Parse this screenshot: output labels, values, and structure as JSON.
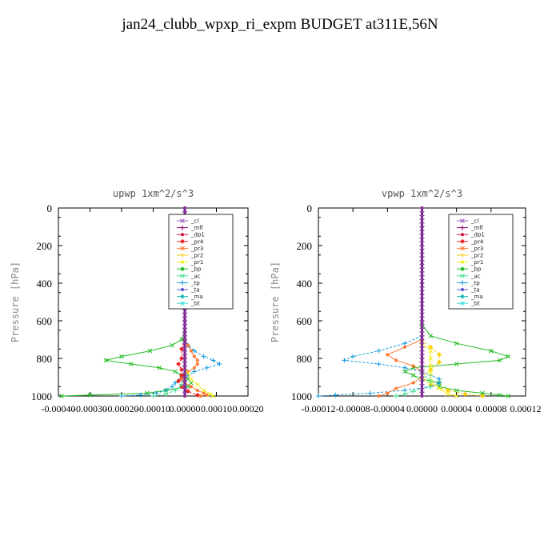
{
  "title": "jan24_clubb_wpxp_ri_expm  BUDGET at311E,56N",
  "legend_labels": [
    "_cl",
    "_mfl",
    "_dp1",
    "_pr4",
    "_pr3",
    "_pr2",
    "_pr1",
    "_bp",
    "_ac",
    "_tp",
    "_ta",
    "_ma",
    "_bt"
  ],
  "series_colors": [
    "#9b59b6",
    "#800060",
    "#cc1040",
    "#ee2222",
    "#ff7733",
    "#ffcc00",
    "#eeee22",
    "#22bb22",
    "#33dd88",
    "#1199dd",
    "#5555cc",
    "#22bbbb",
    "#33dddd"
  ],
  "chart_data": [
    {
      "type": "line",
      "title": "upwp   1xm^2/s^3",
      "ylabel": "Pressure [hPa]",
      "ylim": [
        1000,
        0
      ],
      "yticks": [
        "0",
        "200",
        "400",
        "600",
        "800",
        "1000"
      ],
      "xlim": [
        -0.0004,
        0.0002
      ],
      "xticks": [
        "-0.00040",
        "-0.00030",
        "-0.00020",
        "-0.00010",
        "0.00000",
        "0.00010",
        "0.00020"
      ],
      "grid": false,
      "legend_position": "top-right",
      "series": [
        {
          "name": "_bp",
          "pressure": [
            650,
            700,
            730,
            760,
            790,
            810,
            830,
            850,
            870,
            890,
            910,
            930,
            950,
            970,
            985,
            995,
            1000
          ],
          "values": [
            0,
            -1e-05,
            -4e-05,
            -0.00011,
            -0.0002,
            -0.00025,
            -0.00017,
            -8e-05,
            -3e-05,
            -1e-05,
            1e-05,
            2e-05,
            1e-05,
            -6e-05,
            -0.00012,
            -0.0003,
            -0.00039
          ]
        },
        {
          "name": "_tp",
          "pressure": [
            700,
            730,
            760,
            790,
            810,
            830,
            850,
            870,
            890,
            910,
            930,
            950,
            970,
            985,
            995,
            1000
          ],
          "values": [
            0,
            1e-05,
            3e-05,
            6e-05,
            9e-05,
            0.00011,
            7e-05,
            3e-05,
            1e-05,
            -1e-05,
            -3e-05,
            -4e-05,
            -6e-05,
            -9e-05,
            -0.00014,
            -0.0002
          ]
        },
        {
          "name": "_pr3",
          "pressure": [
            700,
            730,
            760,
            790,
            810,
            830,
            850,
            870,
            890,
            910,
            930,
            950,
            970,
            985,
            995,
            1000
          ],
          "values": [
            0,
            1e-05,
            2e-05,
            3e-05,
            4e-05,
            4e-05,
            3e-05,
            1e-05,
            0,
            -1e-05,
            0,
            2e-05,
            4e-05,
            6e-05,
            7e-05,
            5e-05
          ]
        },
        {
          "name": "_pr4",
          "pressure": [
            700,
            750,
            800,
            830,
            860,
            890,
            920,
            950,
            975,
            995
          ],
          "values": [
            0,
            -1e-05,
            -1e-05,
            -2e-05,
            -1e-05,
            -1e-05,
            -2e-05,
            -1e-05,
            1e-05,
            4e-05
          ]
        },
        {
          "name": "_pr1",
          "pressure": [
            850,
            880,
            910,
            940,
            970,
            990,
            1000
          ],
          "values": [
            0,
            1e-05,
            2e-05,
            4e-05,
            6e-05,
            8e-05,
            9e-05
          ]
        },
        {
          "name": "_ac",
          "pressure": [
            900,
            940,
            970,
            990,
            1000
          ],
          "values": [
            0,
            -1e-05,
            -3e-05,
            -6e-05,
            -0.0001
          ]
        },
        {
          "name": "_mfl",
          "pressure": [
            0,
            100,
            200,
            300,
            400,
            500,
            600,
            700,
            800,
            900,
            1000
          ],
          "values": [
            0,
            0,
            0,
            0,
            0,
            0,
            0,
            0,
            0,
            0,
            0
          ]
        }
      ]
    },
    {
      "type": "line",
      "title": "vpwp   1xm^2/s^3",
      "ylabel": "Pressure [hPa]",
      "ylim": [
        1000,
        0
      ],
      "yticks": [
        "0",
        "200",
        "400",
        "600",
        "800",
        "1000"
      ],
      "xlim": [
        -0.00012,
        0.00012
      ],
      "xticks": [
        "-0.00012",
        "-0.00008",
        "-0.00004",
        "0.00000",
        "0.00004",
        "0.00008",
        "0.00012"
      ],
      "grid": false,
      "legend_position": "top-right",
      "series": [
        {
          "name": "_bp",
          "pressure": [
            620,
            680,
            720,
            760,
            790,
            810,
            830,
            850,
            870,
            890,
            910,
            930,
            950,
            970,
            985,
            995,
            1000
          ],
          "values": [
            0,
            1e-05,
            4e-05,
            8e-05,
            0.0001,
            9e-05,
            4e-05,
            -1e-05,
            -2e-05,
            -1e-05,
            0,
            2e-05,
            2e-05,
            4e-05,
            7e-05,
            9e-05,
            0.0001
          ]
        },
        {
          "name": "_tp",
          "pressure": [
            680,
            720,
            760,
            790,
            810,
            830,
            850,
            870,
            890,
            910,
            930,
            950,
            970,
            985,
            995,
            1000
          ],
          "values": [
            0,
            -2e-05,
            -5e-05,
            -8e-05,
            -9e-05,
            -5e-05,
            -2e-05,
            0,
            1e-05,
            2e-05,
            2e-05,
            1e-05,
            -2e-05,
            -6e-05,
            -0.0001,
            -0.00012
          ]
        },
        {
          "name": "_pr3",
          "pressure": [
            700,
            740,
            780,
            810,
            840,
            870,
            900,
            930,
            960,
            985,
            1000
          ],
          "values": [
            0,
            -2e-05,
            -4e-05,
            -3e-05,
            -1e-05,
            0,
            0,
            -1e-05,
            -3e-05,
            -4e-05,
            -5e-05
          ]
        },
        {
          "name": "_pr2",
          "pressure": [
            700,
            740,
            780,
            820,
            860,
            900,
            940,
            970,
            990,
            1000
          ],
          "values": [
            0,
            1e-05,
            2e-05,
            2e-05,
            1e-05,
            0,
            1e-05,
            3e-05,
            5e-05,
            7e-05
          ]
        },
        {
          "name": "_pr1",
          "pressure": [
            720,
            760,
            800,
            840,
            880,
            920,
            960,
            990,
            1000
          ],
          "values": [
            0,
            1e-05,
            1e-05,
            1e-05,
            1e-05,
            1e-05,
            2e-05,
            3e-05,
            4e-05
          ]
        },
        {
          "name": "_ac",
          "pressure": [
            880,
            920,
            950,
            975,
            990,
            1000
          ],
          "values": [
            0,
            1e-05,
            1e-05,
            -1e-05,
            -2e-05,
            -3e-05
          ]
        },
        {
          "name": "_mfl",
          "pressure": [
            0,
            100,
            200,
            300,
            400,
            500,
            600,
            700,
            800,
            900,
            1000
          ],
          "values": [
            0,
            0,
            0,
            0,
            0,
            0,
            0,
            0,
            0,
            0,
            0
          ]
        }
      ]
    }
  ]
}
